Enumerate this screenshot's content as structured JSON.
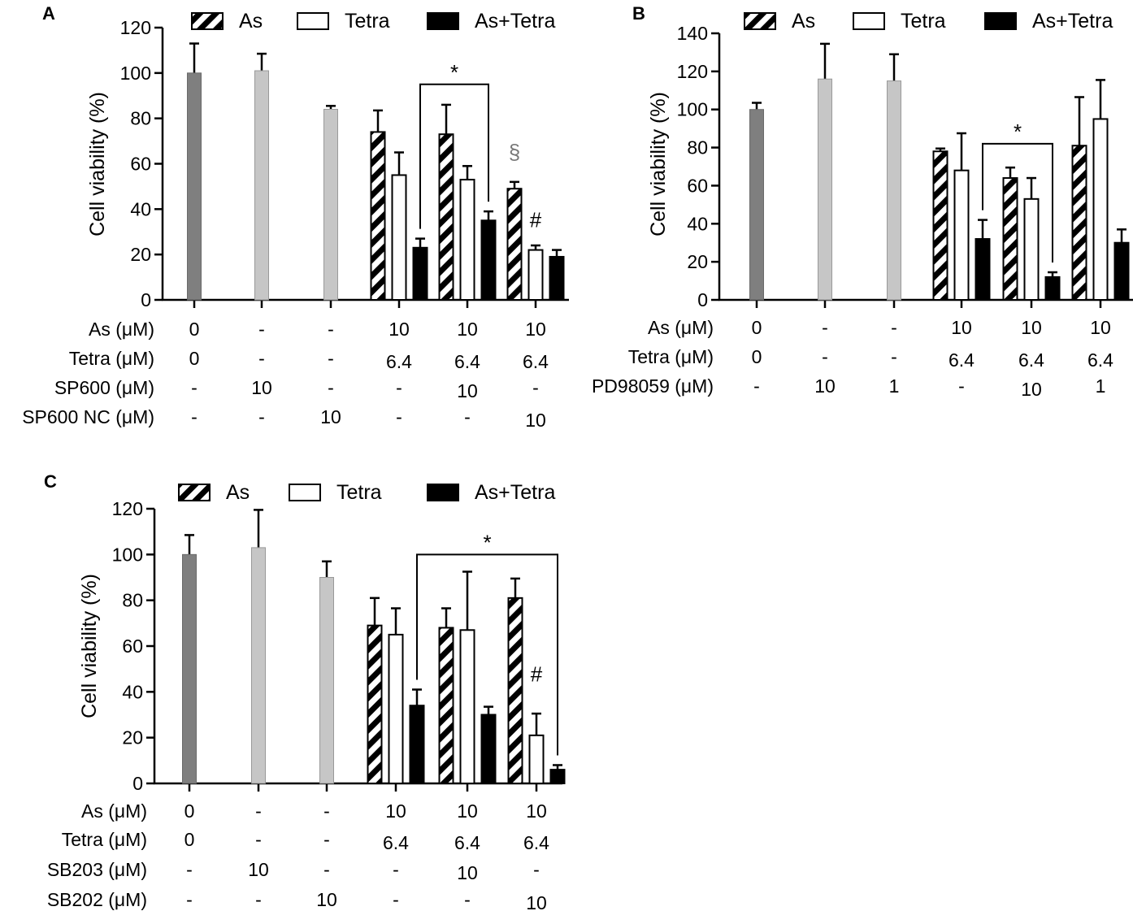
{
  "chart_data": [
    {
      "type": "bar",
      "panel": "A",
      "ylabel": "Cell viability (%)",
      "ylim": [
        0,
        120
      ],
      "yticks": [
        0,
        20,
        40,
        60,
        80,
        100,
        120
      ],
      "legend": [
        "As",
        "Tetra",
        "As+Tetra"
      ],
      "bars": [
        {
          "group": 0,
          "kind": "control",
          "value": 100,
          "err": 13
        },
        {
          "group": 1,
          "kind": "inhibitor",
          "value": 101,
          "err": 7.5
        },
        {
          "group": 2,
          "kind": "inhibitor",
          "value": 84,
          "err": 1.5
        },
        {
          "group": 3,
          "kind": "As",
          "value": 74,
          "err": 9.5
        },
        {
          "group": 3,
          "kind": "Tetra",
          "value": 55,
          "err": 10
        },
        {
          "group": 3,
          "kind": "As+Tetra",
          "value": 23,
          "err": 4
        },
        {
          "group": 4,
          "kind": "As",
          "value": 73,
          "err": 13
        },
        {
          "group": 4,
          "kind": "Tetra",
          "value": 53,
          "err": 6
        },
        {
          "group": 4,
          "kind": "As+Tetra",
          "value": 35,
          "err": 4
        },
        {
          "group": 5,
          "kind": "As",
          "value": 49,
          "err": 3
        },
        {
          "group": 5,
          "kind": "Tetra",
          "value": 22,
          "err": 2
        },
        {
          "group": 5,
          "kind": "As+Tetra",
          "value": 19,
          "err": 3
        }
      ],
      "brackets": [
        {
          "from": [
            3,
            "As+Tetra"
          ],
          "to": [
            4,
            "As+Tetra"
          ],
          "top": 95,
          "label": "*"
        }
      ],
      "annotations": [
        {
          "group": 5,
          "kind": "As",
          "offset": 10,
          "label": "§",
          "color": "#777777"
        },
        {
          "group": 5,
          "kind": "Tetra",
          "offset": 8,
          "label": "#",
          "color": "#000000"
        }
      ],
      "rows": [
        {
          "label": "As (μM)",
          "values": [
            "0",
            "-",
            "-",
            "10",
            "10",
            "10"
          ]
        },
        {
          "label": "Tetra (μM)",
          "values": [
            "0",
            "-",
            "-",
            "6.4",
            "6.4",
            "6.4"
          ]
        },
        {
          "label": "SP600 (μM)",
          "values": [
            "-",
            "10",
            "-",
            "-",
            "10",
            "-"
          ]
        },
        {
          "label": "SP600 NC (μM)",
          "values": [
            "-",
            "-",
            "10",
            "-",
            "-",
            "10"
          ]
        }
      ]
    },
    {
      "type": "bar",
      "panel": "B",
      "ylabel": "Cell viability (%)",
      "ylim": [
        0,
        140
      ],
      "yticks": [
        0,
        20,
        40,
        60,
        80,
        100,
        120,
        140
      ],
      "legend": [
        "As",
        "Tetra",
        "As+Tetra"
      ],
      "bars": [
        {
          "group": 0,
          "kind": "control",
          "value": 100,
          "err": 3.5
        },
        {
          "group": 1,
          "kind": "inhibitor",
          "value": 116,
          "err": 18.5
        },
        {
          "group": 2,
          "kind": "inhibitor",
          "value": 115,
          "err": 14
        },
        {
          "group": 3,
          "kind": "As",
          "value": 78,
          "err": 1.5
        },
        {
          "group": 3,
          "kind": "Tetra",
          "value": 68,
          "err": 19.5
        },
        {
          "group": 3,
          "kind": "As+Tetra",
          "value": 32,
          "err": 10
        },
        {
          "group": 4,
          "kind": "As",
          "value": 64,
          "err": 5.5
        },
        {
          "group": 4,
          "kind": "Tetra",
          "value": 53,
          "err": 11
        },
        {
          "group": 4,
          "kind": "As+Tetra",
          "value": 12,
          "err": 2.5
        },
        {
          "group": 5,
          "kind": "As",
          "value": 81,
          "err": 25.5
        },
        {
          "group": 5,
          "kind": "Tetra",
          "value": 95,
          "err": 20.5
        },
        {
          "group": 5,
          "kind": "As+Tetra",
          "value": 30,
          "err": 7
        }
      ],
      "brackets": [
        {
          "from": [
            3,
            "As+Tetra"
          ],
          "to": [
            4,
            "As+Tetra"
          ],
          "top": 82,
          "label": "*"
        }
      ],
      "annotations": [],
      "rows": [
        {
          "label": "As (μM)",
          "values": [
            "0",
            "-",
            "-",
            "10",
            "10",
            "10"
          ]
        },
        {
          "label": "Tetra (μM)",
          "values": [
            "0",
            "-",
            "-",
            "6.4",
            "6.4",
            "6.4"
          ]
        },
        {
          "label": "PD98059 (μM)",
          "values": [
            "-",
            "10",
            "1",
            "-",
            "10",
            "1"
          ]
        }
      ]
    },
    {
      "type": "bar",
      "panel": "C",
      "ylabel": "Cell viability (%)",
      "ylim": [
        0,
        120
      ],
      "yticks": [
        0,
        20,
        40,
        60,
        80,
        100,
        120
      ],
      "legend": [
        "As",
        "Tetra",
        "As+Tetra"
      ],
      "bars": [
        {
          "group": 0,
          "kind": "control",
          "value": 100,
          "err": 8.5
        },
        {
          "group": 1,
          "kind": "inhibitor",
          "value": 103,
          "err": 16.5
        },
        {
          "group": 2,
          "kind": "inhibitor",
          "value": 90,
          "err": 7
        },
        {
          "group": 3,
          "kind": "As",
          "value": 69,
          "err": 12
        },
        {
          "group": 3,
          "kind": "Tetra",
          "value": 65,
          "err": 11.5
        },
        {
          "group": 3,
          "kind": "As+Tetra",
          "value": 34,
          "err": 7
        },
        {
          "group": 4,
          "kind": "As",
          "value": 68,
          "err": 8.5
        },
        {
          "group": 4,
          "kind": "Tetra",
          "value": 67,
          "err": 25.5
        },
        {
          "group": 4,
          "kind": "As+Tetra",
          "value": 30,
          "err": 3.5
        },
        {
          "group": 5,
          "kind": "As",
          "value": 81,
          "err": 8.5
        },
        {
          "group": 5,
          "kind": "Tetra",
          "value": 21,
          "err": 9.5
        },
        {
          "group": 5,
          "kind": "As+Tetra",
          "value": 6,
          "err": 2
        }
      ],
      "brackets": [
        {
          "from": [
            3,
            "As+Tetra"
          ],
          "to": [
            5,
            "As+Tetra"
          ],
          "top": 100,
          "label": "*"
        }
      ],
      "annotations": [
        {
          "group": 5,
          "kind": "Tetra",
          "offset": 14,
          "label": "#",
          "color": "#000000"
        }
      ],
      "rows": [
        {
          "label": "As (μM)",
          "values": [
            "0",
            "-",
            "-",
            "10",
            "10",
            "10"
          ]
        },
        {
          "label": "Tetra (μM)",
          "values": [
            "0",
            "-",
            "-",
            "6.4",
            "6.4",
            "6.4"
          ]
        },
        {
          "label": "SB203 (μM)",
          "values": [
            "-",
            "10",
            "-",
            "-",
            "10",
            "-"
          ]
        },
        {
          "label": "SB202 (μM)",
          "values": [
            "-",
            "-",
            "10",
            "-",
            "-",
            "10"
          ]
        }
      ]
    }
  ],
  "colors": {
    "control": "#7f7f7f",
    "inhibitor": "#c6c6c6",
    "combo": "#000000",
    "outline": "#000000",
    "background": "#ffffff"
  }
}
